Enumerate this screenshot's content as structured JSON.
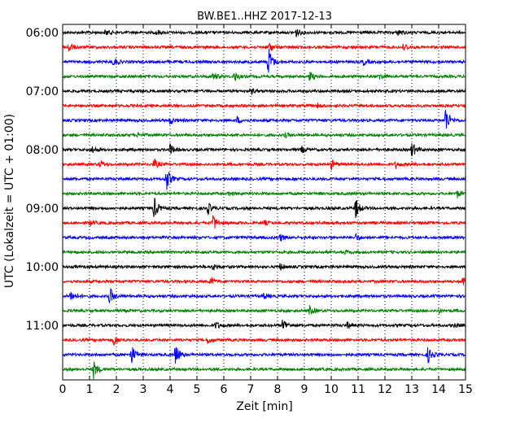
{
  "chart_data": {
    "type": "line",
    "title": "BW.BE1..HHZ 2017-12-13",
    "xlabel": "Zeit  [min]",
    "ylabel": "UTC (Lokalzeit = UTC + 01:00)",
    "xlim": [
      0,
      15
    ],
    "x_ticks": [
      "0",
      "1",
      "2",
      "3",
      "4",
      "5",
      "6",
      "7",
      "8",
      "9",
      "10",
      "11",
      "12",
      "13",
      "14",
      "15"
    ],
    "grid": true,
    "y_tick_labels": [
      "06:00",
      "07:00",
      "08:00",
      "09:00",
      "10:00",
      "11:00"
    ],
    "trace_colors": [
      "#000000",
      "#ff0000",
      "#0000ff",
      "#008000"
    ],
    "series": [
      {
        "time": "06:00",
        "color": "black",
        "events": [
          {
            "t": 1.6,
            "amp": 0.3
          },
          {
            "t": 3.5,
            "amp": 0.25
          },
          {
            "t": 8.7,
            "amp": 0.4
          },
          {
            "t": 12.5,
            "amp": 0.3
          }
        ]
      },
      {
        "time": "06:15",
        "color": "red",
        "events": [
          {
            "t": 0.2,
            "amp": 0.6
          },
          {
            "t": 7.7,
            "amp": 0.45
          },
          {
            "t": 12.7,
            "amp": 0.35
          }
        ]
      },
      {
        "time": "06:30",
        "color": "blue",
        "events": [
          {
            "t": 1.9,
            "amp": 0.45
          },
          {
            "t": 7.65,
            "amp": 1.6
          },
          {
            "t": 11.2,
            "amp": 0.3
          }
        ]
      },
      {
        "time": "06:45",
        "color": "green",
        "events": [
          {
            "t": 5.6,
            "amp": 0.45
          },
          {
            "t": 6.4,
            "amp": 0.5
          },
          {
            "t": 9.2,
            "amp": 0.45
          },
          {
            "t": 11.8,
            "amp": 0.3
          }
        ]
      },
      {
        "time": "07:00",
        "color": "black",
        "events": [
          {
            "t": 7.0,
            "amp": 0.25
          }
        ]
      },
      {
        "time": "07:15",
        "color": "red",
        "events": [
          {
            "t": 9.5,
            "amp": 0.2
          }
        ]
      },
      {
        "time": "07:30",
        "color": "blue",
        "events": [
          {
            "t": 4.0,
            "amp": 0.4
          },
          {
            "t": 6.5,
            "amp": 0.3
          },
          {
            "t": 14.25,
            "amp": 1.4
          }
        ]
      },
      {
        "time": "07:45",
        "color": "green",
        "events": [
          {
            "t": 2.8,
            "amp": 0.2
          },
          {
            "t": 8.3,
            "amp": 0.2
          }
        ]
      },
      {
        "time": "08:00",
        "color": "black",
        "events": [
          {
            "t": 1.1,
            "amp": 0.35
          },
          {
            "t": 4.0,
            "amp": 0.5
          },
          {
            "t": 8.9,
            "amp": 0.3
          },
          {
            "t": 13.0,
            "amp": 0.8
          }
        ]
      },
      {
        "time": "08:15",
        "color": "red",
        "events": [
          {
            "t": 1.4,
            "amp": 0.35
          },
          {
            "t": 3.4,
            "amp": 0.5
          },
          {
            "t": 10.0,
            "amp": 0.5
          },
          {
            "t": 12.4,
            "amp": 0.3
          }
        ]
      },
      {
        "time": "08:30",
        "color": "blue",
        "events": [
          {
            "t": 3.85,
            "amp": 1.3
          }
        ]
      },
      {
        "time": "08:45",
        "color": "green",
        "events": [
          {
            "t": 6.2,
            "amp": 0.2
          },
          {
            "t": 14.7,
            "amp": 0.35
          }
        ]
      },
      {
        "time": "09:00",
        "color": "black",
        "events": [
          {
            "t": 3.4,
            "amp": 1.1
          },
          {
            "t": 5.4,
            "amp": 0.6
          },
          {
            "t": 10.9,
            "amp": 1.05
          }
        ]
      },
      {
        "time": "09:15",
        "color": "red",
        "events": [
          {
            "t": 1.0,
            "amp": 0.3
          },
          {
            "t": 5.6,
            "amp": 0.85
          },
          {
            "t": 7.5,
            "amp": 0.2
          }
        ]
      },
      {
        "time": "09:30",
        "color": "blue",
        "events": [
          {
            "t": 8.1,
            "amp": 0.35
          },
          {
            "t": 10.9,
            "amp": 0.35
          }
        ]
      },
      {
        "time": "09:45",
        "color": "green",
        "events": [
          {
            "t": 10.5,
            "amp": 0.15
          }
        ]
      },
      {
        "time": "10:00",
        "color": "black",
        "events": [
          {
            "t": 5.6,
            "amp": 0.3
          },
          {
            "t": 8.1,
            "amp": 0.3
          }
        ]
      },
      {
        "time": "10:15",
        "color": "red",
        "events": [
          {
            "t": 5.5,
            "amp": 0.35
          },
          {
            "t": 14.9,
            "amp": 0.45
          }
        ]
      },
      {
        "time": "10:30",
        "color": "blue",
        "events": [
          {
            "t": 0.3,
            "amp": 0.55
          },
          {
            "t": 1.75,
            "amp": 0.85
          },
          {
            "t": 7.5,
            "amp": 0.3
          }
        ]
      },
      {
        "time": "10:45",
        "color": "green",
        "events": [
          {
            "t": 9.2,
            "amp": 0.45
          },
          {
            "t": 14.0,
            "amp": 0.2
          }
        ]
      },
      {
        "time": "11:00",
        "color": "black",
        "events": [
          {
            "t": 5.7,
            "amp": 0.35
          },
          {
            "t": 8.2,
            "amp": 0.75
          },
          {
            "t": 10.6,
            "amp": 0.3
          },
          {
            "t": 14.6,
            "amp": 0.2
          }
        ]
      },
      {
        "time": "11:15",
        "color": "red",
        "events": [
          {
            "t": 1.9,
            "amp": 0.55
          },
          {
            "t": 5.4,
            "amp": 0.35
          }
        ]
      },
      {
        "time": "11:30",
        "color": "blue",
        "events": [
          {
            "t": 2.55,
            "amp": 1.05
          },
          {
            "t": 4.2,
            "amp": 1.15
          },
          {
            "t": 13.6,
            "amp": 0.75
          }
        ]
      },
      {
        "time": "11:45",
        "color": "green",
        "events": [
          {
            "t": 1.15,
            "amp": 0.85
          }
        ]
      }
    ]
  }
}
